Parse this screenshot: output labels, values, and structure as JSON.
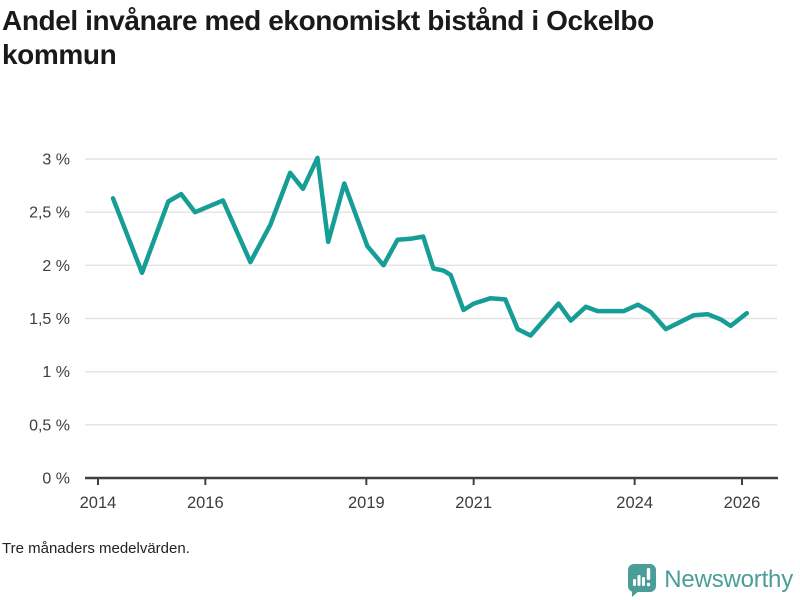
{
  "header": {
    "title": "Andel invånare med ekonomiskt bistånd i Ockelbo kommun"
  },
  "footer": {
    "note": "Tre månaders medelvärden."
  },
  "brand": {
    "name": "Newsworthy",
    "icon": "newsworthy-speech-bubble-bars-icon"
  },
  "colors": {
    "line": "#169e96",
    "grid": "#e3e3e3",
    "axis": "#404040",
    "tick_label": "#3d3d3d",
    "title": "#1a1a1a",
    "note": "#222222",
    "brand_teal": "#4a9e98"
  },
  "chart_data": {
    "type": "line",
    "title": "Andel invånare med ekonomiskt bistånd i Ockelbo kommun",
    "note": "Tre månaders medelvärden.",
    "unit": "%",
    "grid": "horizontal",
    "legend": "none",
    "xlabel": "",
    "ylabel": "",
    "xlim": [
      2013.758,
      2026.652
    ],
    "ylim": [
      0,
      3
    ],
    "x_ticks": [
      2014,
      2016,
      2019,
      2021,
      2024,
      2026
    ],
    "x_tick_labels": [
      "2014",
      "2016",
      "2019",
      "2021",
      "2024",
      "2026"
    ],
    "y_ticks": [
      0,
      0.5,
      1,
      1.5,
      2,
      2.5,
      3
    ],
    "y_tick_labels": [
      "0 %",
      "0,5 %",
      "1 %",
      "1,5 %",
      "2 %",
      "2,5 %",
      "3 %"
    ],
    "series": [
      {
        "name": "Andel invånare med ekonomiskt bistånd, Ockelbo kommun",
        "points": [
          [
            2014.28,
            2.63
          ],
          [
            2014.82,
            1.93
          ],
          [
            2015.31,
            2.6
          ],
          [
            2015.55,
            2.67
          ],
          [
            2015.81,
            2.5
          ],
          [
            2016.09,
            2.56
          ],
          [
            2016.33,
            2.61
          ],
          [
            2016.84,
            2.03
          ],
          [
            2017.21,
            2.38
          ],
          [
            2017.58,
            2.87
          ],
          [
            2017.82,
            2.72
          ],
          [
            2018.09,
            3.01
          ],
          [
            2018.29,
            2.22
          ],
          [
            2018.59,
            2.77
          ],
          [
            2019.02,
            2.18
          ],
          [
            2019.32,
            2.0
          ],
          [
            2019.58,
            2.24
          ],
          [
            2019.82,
            2.25
          ],
          [
            2020.06,
            2.27
          ],
          [
            2020.25,
            1.97
          ],
          [
            2020.44,
            1.95
          ],
          [
            2020.57,
            1.91
          ],
          [
            2020.81,
            1.58
          ],
          [
            2021.0,
            1.64
          ],
          [
            2021.31,
            1.69
          ],
          [
            2021.59,
            1.68
          ],
          [
            2021.82,
            1.4
          ],
          [
            2022.06,
            1.34
          ],
          [
            2022.58,
            1.64
          ],
          [
            2022.81,
            1.48
          ],
          [
            2023.09,
            1.61
          ],
          [
            2023.31,
            1.57
          ],
          [
            2023.8,
            1.57
          ],
          [
            2024.06,
            1.63
          ],
          [
            2024.3,
            1.56
          ],
          [
            2024.58,
            1.4
          ],
          [
            2024.86,
            1.47
          ],
          [
            2025.1,
            1.53
          ],
          [
            2025.36,
            1.54
          ],
          [
            2025.61,
            1.49
          ],
          [
            2025.79,
            1.43
          ],
          [
            2026.09,
            1.55
          ]
        ]
      }
    ]
  }
}
